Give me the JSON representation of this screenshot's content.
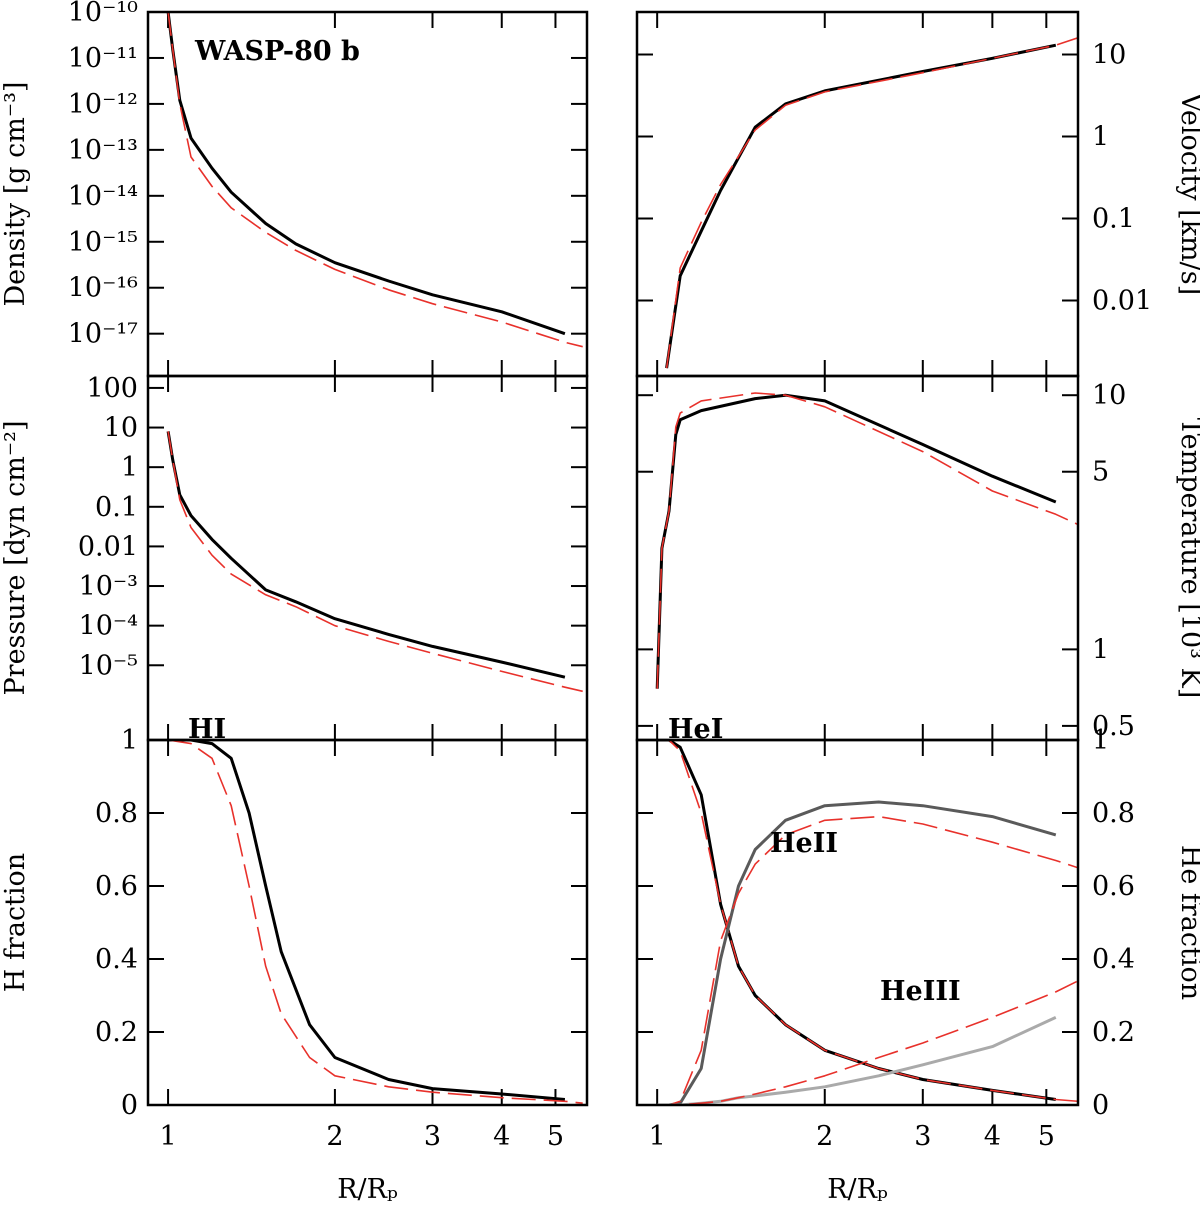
{
  "chart_data": [
    {
      "type": "line",
      "ylabel": "Density [g cm⁻³]",
      "xlog": true,
      "ylog": true,
      "xlim": [
        0.92,
        5.7
      ],
      "xticks": [
        1,
        2,
        3,
        4,
        5
      ],
      "ylim": [
        1.2e-18,
        1e-10
      ],
      "yticks": [
        {
          "value": 1e-10,
          "label": "10⁻¹⁰"
        },
        {
          "value": 1e-11,
          "label": "10⁻¹¹"
        },
        {
          "value": 1e-12,
          "label": "10⁻¹²"
        },
        {
          "value": 1e-13,
          "label": "10⁻¹³"
        },
        {
          "value": 1e-14,
          "label": "10⁻¹⁴"
        },
        {
          "value": 1e-15,
          "label": "10⁻¹⁵"
        },
        {
          "value": 1e-16,
          "label": "10⁻¹⁶"
        },
        {
          "value": 1e-17,
          "label": "10⁻¹⁷"
        }
      ],
      "x": [
        1.0,
        1.02,
        1.05,
        1.1,
        1.2,
        1.3,
        1.5,
        1.7,
        2,
        2.5,
        3,
        4,
        5.2,
        5.6
      ],
      "series": [
        {
          "color": "#000000",
          "style": "solid",
          "values": [
            1e-10,
            1.5e-11,
            1.2e-12,
            1.8e-13,
            4e-14,
            1.2e-14,
            2.5e-15,
            9e-16,
            3.5e-16,
            1.4e-16,
            7e-17,
            3e-17,
            1e-17,
            null
          ]
        },
        {
          "color": "#e8312b",
          "style": "dashed",
          "values": [
            1e-10,
            1.5e-11,
            1e-12,
            7e-14,
            1.6e-14,
            5.5e-15,
            1.6e-15,
            6.5e-16,
            2.5e-16,
            9e-17,
            4.5e-17,
            1.8e-17,
            6.5e-18,
            5.2e-18
          ]
        }
      ],
      "annotations": [
        {
          "text": "WASP-80 b",
          "color": "#000000"
        }
      ]
    },
    {
      "type": "line",
      "ylabel": "Velocity [km/s]",
      "yaxis_side": "right",
      "xlog": true,
      "ylog": true,
      "xlim": [
        0.92,
        5.7
      ],
      "xticks": [
        1,
        2,
        3,
        4,
        5
      ],
      "ylim": [
        0.0012,
        33
      ],
      "yticks": [
        0.01,
        0.1,
        1,
        10
      ],
      "x": [
        1.04,
        1.1,
        1.2,
        1.3,
        1.5,
        1.7,
        2,
        3,
        4,
        5.2,
        5.7
      ],
      "series": [
        {
          "color": "#000000",
          "style": "solid",
          "values": [
            0.0015,
            0.02,
            0.07,
            0.22,
            1.3,
            2.5,
            3.6,
            6.2,
            9,
            13,
            null
          ]
        },
        {
          "color": "#e8312b",
          "style": "dashed",
          "values": [
            0.0015,
            0.025,
            0.09,
            0.26,
            1.2,
            2.4,
            3.5,
            6,
            9,
            13,
            16
          ]
        }
      ],
      "annotations": []
    },
    {
      "type": "line",
      "ylabel": "Pressure [dyn cm⁻²]",
      "xlog": true,
      "ylog": true,
      "xlim": [
        0.92,
        5.7
      ],
      "xticks": [
        1,
        2,
        3,
        4,
        5
      ],
      "ylim": [
        1.3e-07,
        200
      ],
      "yticks": [
        100,
        10,
        1,
        0.1,
        0.01,
        {
          "value": 0.001,
          "label": "10⁻³"
        },
        {
          "value": 0.0001,
          "label": "10⁻⁴"
        },
        {
          "value": 1e-05,
          "label": "10⁻⁵"
        }
      ],
      "x": [
        1.0,
        1.02,
        1.05,
        1.1,
        1.2,
        1.3,
        1.5,
        1.7,
        2,
        2.5,
        3,
        4,
        5.2,
        5.6
      ],
      "series": [
        {
          "color": "#000000",
          "style": "solid",
          "values": [
            8,
            1.5,
            0.2,
            0.06,
            0.015,
            0.005,
            0.0008,
            0.0004,
            0.00015,
            6e-05,
            3e-05,
            1.2e-05,
            5e-06,
            null
          ]
        },
        {
          "color": "#e8312b",
          "style": "dashed",
          "values": [
            8,
            1.5,
            0.15,
            0.03,
            0.006,
            0.002,
            0.0006,
            0.0003,
            0.0001,
            4e-05,
            2e-05,
            7e-06,
            2.8e-06,
            2.2e-06
          ]
        }
      ],
      "annotations": []
    },
    {
      "type": "line",
      "ylabel": "Temperature [10³ K]",
      "yaxis_side": "right",
      "xlog": true,
      "ylog": true,
      "xlim": [
        0.92,
        5.7
      ],
      "xticks": [
        1,
        2,
        3,
        4,
        5
      ],
      "ylim": [
        0.44,
        11.9
      ],
      "yticks": [
        0.5,
        1,
        5,
        10
      ],
      "x": [
        1.0,
        1.02,
        1.05,
        1.08,
        1.1,
        1.2,
        1.5,
        1.7,
        2,
        3,
        4,
        5.2,
        5.7
      ],
      "series": [
        {
          "color": "#000000",
          "style": "solid",
          "values": [
            0.7,
            2.5,
            3.5,
            7,
            8,
            8.7,
            9.7,
            10,
            9.5,
            6.4,
            4.8,
            3.8,
            null
          ]
        },
        {
          "color": "#e8312b",
          "style": "dashed",
          "values": [
            0.7,
            2.5,
            3.5,
            7.5,
            8.5,
            9.5,
            10.2,
            10,
            9,
            6,
            4.2,
            3.4,
            3.1
          ]
        }
      ],
      "annotations": []
    },
    {
      "type": "line",
      "ylabel": "H fraction",
      "xlabel": "R/Rₚ",
      "xlog": true,
      "xlim": [
        0.92,
        5.7
      ],
      "xticks": [
        1,
        2,
        3,
        4,
        5
      ],
      "ylim": [
        0,
        1
      ],
      "yticks": [
        0,
        0.2,
        0.4,
        0.6,
        0.8,
        1
      ],
      "x": [
        1.0,
        1.1,
        1.2,
        1.3,
        1.4,
        1.5,
        1.6,
        1.8,
        2,
        2.5,
        3,
        4,
        5.2,
        5.6
      ],
      "series": [
        {
          "color": "#000000",
          "style": "solid",
          "values": [
            1,
            1,
            0.99,
            0.95,
            0.8,
            0.6,
            0.42,
            0.22,
            0.13,
            0.07,
            0.045,
            0.03,
            0.015,
            null
          ]
        },
        {
          "color": "#e8312b",
          "style": "dashed",
          "values": [
            1,
            0.99,
            0.95,
            0.82,
            0.6,
            0.38,
            0.25,
            0.13,
            0.08,
            0.05,
            0.035,
            0.02,
            0.01,
            0.005
          ]
        }
      ],
      "annotations": [
        {
          "text": "HI",
          "color": "#000000"
        }
      ]
    },
    {
      "type": "line",
      "ylabel": "He fraction",
      "yaxis_side": "right",
      "xlabel": "R/Rₚ",
      "xlog": true,
      "xlim": [
        0.92,
        5.7
      ],
      "xticks": [
        1,
        2,
        3,
        4,
        5
      ],
      "ylim": [
        0,
        1
      ],
      "yticks": [
        0,
        0.2,
        0.4,
        0.6,
        0.8,
        1
      ],
      "x": [
        1.0,
        1.05,
        1.1,
        1.2,
        1.3,
        1.4,
        1.5,
        1.7,
        2,
        2.5,
        3,
        4,
        5.2,
        5.7
      ],
      "series": [
        {
          "color": "#000000",
          "style": "solid",
          "values": [
            1,
            1,
            0.98,
            0.85,
            0.55,
            0.38,
            0.3,
            0.22,
            0.15,
            0.1,
            0.07,
            0.04,
            0.015,
            null
          ]
        },
        {
          "color": "#e8312b",
          "style": "dashed",
          "values": [
            1,
            1,
            0.97,
            0.8,
            0.55,
            0.38,
            0.3,
            0.22,
            0.15,
            0.1,
            0.07,
            0.04,
            0.015,
            0.01
          ]
        },
        {
          "color": "#5a5a5a",
          "style": "solid",
          "values": [
            0,
            0,
            0.005,
            0.1,
            0.4,
            0.6,
            0.7,
            0.78,
            0.82,
            0.83,
            0.82,
            0.79,
            0.74,
            null
          ]
        },
        {
          "color": "#e8312b",
          "style": "dashed",
          "values": [
            0,
            0,
            0.01,
            0.15,
            0.45,
            0.58,
            0.66,
            0.74,
            0.78,
            0.79,
            0.77,
            0.72,
            0.67,
            0.65
          ]
        },
        {
          "color": "#aaaaaa",
          "style": "solid",
          "values": [
            0,
            0,
            0,
            0.005,
            0.01,
            0.02,
            0.025,
            0.035,
            0.05,
            0.08,
            0.11,
            0.16,
            0.24,
            null
          ]
        },
        {
          "color": "#e8312b",
          "style": "dashed",
          "values": [
            0,
            0,
            0,
            0.005,
            0.01,
            0.02,
            0.03,
            0.05,
            0.08,
            0.13,
            0.17,
            0.24,
            0.31,
            0.34
          ]
        }
      ],
      "annotations": [
        {
          "text": "HeI",
          "color": "#000000"
        },
        {
          "text": "HeII",
          "color": "#5a5a5a"
        },
        {
          "text": "HeIII",
          "color": "#aaaaaa"
        }
      ]
    }
  ]
}
